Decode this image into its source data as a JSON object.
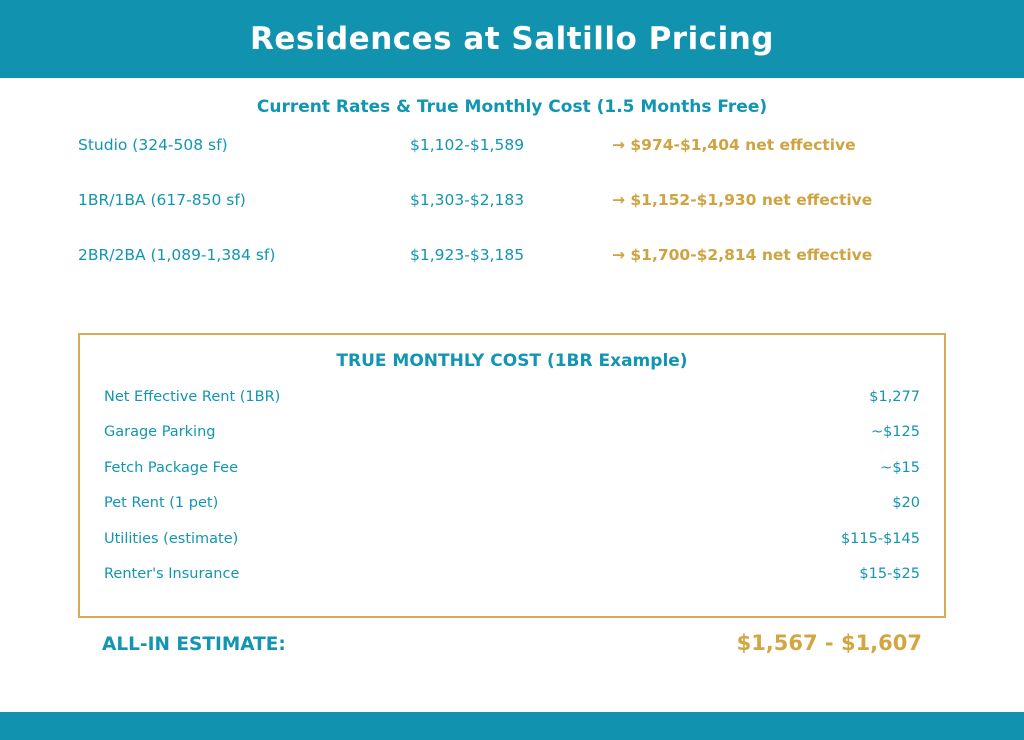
{
  "colors": {
    "teal": "#1295B2",
    "header_bg": "#1193B0",
    "gold_text": "#CFA341",
    "gold_border": "#D5AB56"
  },
  "header": {
    "title": "Residences at Saltillo Pricing"
  },
  "rates": {
    "subtitle": "Current Rates & True Monthly Cost (1.5 Months Free)",
    "rows": [
      {
        "unit": "Studio (324-508 sf)",
        "price": "$1,102-$1,589",
        "net": "→ $974-$1,404 net effective"
      },
      {
        "unit": "1BR/1BA (617-850 sf)",
        "price": "$1,303-$2,183",
        "net": "→ $1,152-$1,930 net effective"
      },
      {
        "unit": "2BR/2BA (1,089-1,384 sf)",
        "price": "$1,923-$3,185",
        "net": "→ $1,700-$2,814 net effective"
      }
    ]
  },
  "cost_box": {
    "title": "TRUE MONTHLY COST (1BR Example)",
    "rows": [
      {
        "label": "Net Effective Rent (1BR)",
        "value": "$1,277"
      },
      {
        "label": "Garage Parking",
        "value": "~$125"
      },
      {
        "label": "Fetch Package Fee",
        "value": "~$15"
      },
      {
        "label": "Pet Rent (1 pet)",
        "value": "$20"
      },
      {
        "label": "Utilities (estimate)",
        "value": "$115-$145"
      },
      {
        "label": "Renter's Insurance",
        "value": "$15-$25"
      }
    ]
  },
  "summary": {
    "label": "ALL-IN ESTIMATE:",
    "value": "$1,567 - $1,607"
  }
}
